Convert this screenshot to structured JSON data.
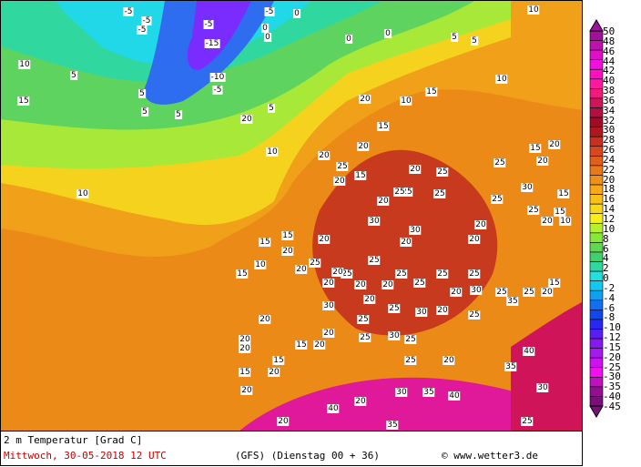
{
  "map": {
    "title": "2 m Temperatur [Grad C]",
    "valid_time": "Mittwoch, 30-05-2018  12 UTC",
    "model_run": "(GFS)  (Dienstag 00 + 36)",
    "copyright": "© www.wetter3.de",
    "colors": {
      "green": "#5fd35f",
      "yellow": "#f5e61e",
      "orange": "#f0a019",
      "dark_orange": "#e8701a",
      "red": "#c83a1e",
      "magenta": "#e0189a",
      "cyan": "#1ee0e8",
      "purple": "#7a2cff"
    },
    "labels": [
      "-5",
      "-5",
      "-5",
      "-5",
      "0",
      "0",
      "-5",
      "-15",
      "-10",
      "-5",
      "0",
      "5",
      "0",
      "0",
      "5",
      "5",
      "10",
      "10",
      "5",
      "5",
      "10",
      "5",
      "5",
      "20",
      "10",
      "15",
      "15",
      "10",
      "20",
      "15",
      "10",
      "20",
      "20",
      "25",
      "20",
      "15",
      "20",
      "25",
      "25",
      "30",
      "25",
      "20",
      "25",
      "30",
      "25",
      "20",
      "20",
      "15",
      "20",
      "15",
      "10",
      "15",
      "20",
      "25",
      "20",
      "25",
      "30",
      "20",
      "25",
      "25",
      "25",
      "20",
      "20",
      "15",
      "15",
      "10",
      "15",
      "20",
      "20",
      "25",
      "20",
      "20",
      "25",
      "25",
      "20",
      "30",
      "25",
      "25",
      "20",
      "15",
      "20",
      "20",
      "25",
      "30",
      "20",
      "25",
      "25",
      "25",
      "20",
      "20",
      "25",
      "30",
      "35",
      "40",
      "30",
      "40",
      "35",
      "35",
      "40",
      "35",
      "30",
      "20",
      "20",
      "15",
      "20",
      "20",
      "15",
      "20",
      "20",
      "15",
      "20",
      "25",
      "30",
      "25",
      "25",
      "20"
    ]
  },
  "legend": {
    "ticks": [
      "50",
      "48",
      "46",
      "44",
      "42",
      "40",
      "38",
      "36",
      "34",
      "32",
      "30",
      "28",
      "26",
      "24",
      "22",
      "20",
      "18",
      "16",
      "14",
      "12",
      "10",
      "8",
      "6",
      "4",
      "2",
      "0",
      "-2",
      "-4",
      "-6",
      "-8",
      "-10",
      "-12",
      "-15",
      "-20",
      "-25",
      "-30",
      "-35",
      "-40",
      "-45"
    ],
    "colors": [
      "#a0109a",
      "#c010b0",
      "#e010c8",
      "#f010e0",
      "#ff10c0",
      "#ff1aa0",
      "#f01a7a",
      "#d0145a",
      "#b01040",
      "#a00c28",
      "#b01820",
      "#c83020",
      "#d84820",
      "#e06018",
      "#e87818",
      "#f09018",
      "#f8a818",
      "#f8c018",
      "#f8d818",
      "#f8f018",
      "#b8f030",
      "#88e838",
      "#60d850",
      "#40d070",
      "#30d8a0",
      "#20e0e0",
      "#10c8f0",
      "#10a0f0",
      "#1070f0",
      "#1048f0",
      "#2828f0",
      "#5820f0",
      "#8818f0",
      "#a818f0",
      "#d010f0",
      "#f010f0",
      "#c010c0",
      "#901090",
      "#781078"
    ]
  }
}
